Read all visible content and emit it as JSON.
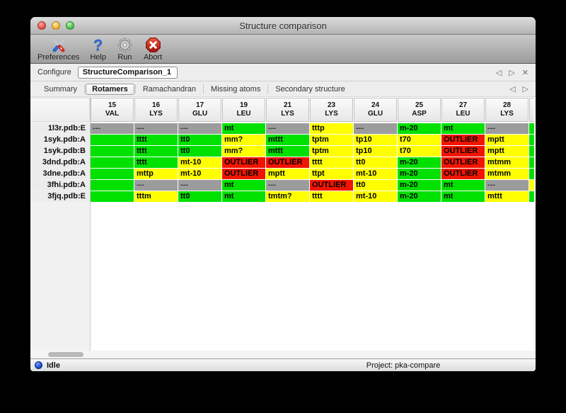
{
  "window": {
    "title": "Structure comparison"
  },
  "toolbar": {
    "items": [
      {
        "label": "Preferences",
        "icon": "crossed-tools-icon"
      },
      {
        "label": "Help",
        "icon": "question-mark-icon"
      },
      {
        "label": "Run",
        "icon": "gear-icon"
      },
      {
        "label": "Abort",
        "icon": "stop-x-icon"
      }
    ]
  },
  "configure": {
    "label": "Configure",
    "value": "StructureComparison_1"
  },
  "tabs": {
    "items": [
      {
        "label": "Summary",
        "selected": false
      },
      {
        "label": "Rotamers",
        "selected": true
      },
      {
        "label": "Ramachandran",
        "selected": false
      },
      {
        "label": "Missing atoms",
        "selected": false
      },
      {
        "label": "Secondary structure",
        "selected": false
      }
    ]
  },
  "icons": {
    "nav_prev": "◁",
    "nav_next": "▷",
    "close": "✕",
    "help": "?"
  },
  "colors": {
    "green": "#00e100",
    "yellow": "#ffff00",
    "red": "#f11500",
    "gray": "#9c9c9c"
  },
  "table": {
    "columns": [
      {
        "number": "15",
        "residue": "VAL"
      },
      {
        "number": "16",
        "residue": "LYS"
      },
      {
        "number": "17",
        "residue": "GLU"
      },
      {
        "number": "19",
        "residue": "LEU"
      },
      {
        "number": "21",
        "residue": "LYS"
      },
      {
        "number": "23",
        "residue": "LYS"
      },
      {
        "number": "24",
        "residue": "GLU"
      },
      {
        "number": "25",
        "residue": "ASP"
      },
      {
        "number": "27",
        "residue": "LEU"
      },
      {
        "number": "28",
        "residue": "LYS"
      }
    ],
    "rows": [
      {
        "label": "1l3r.pdb:E",
        "overflow": "green",
        "cells": [
          {
            "t": "---",
            "c": "gray"
          },
          {
            "t": "---",
            "c": "gray"
          },
          {
            "t": "---",
            "c": "gray"
          },
          {
            "t": "mt",
            "c": "green"
          },
          {
            "t": "---",
            "c": "gray"
          },
          {
            "t": "tttp",
            "c": "yellow"
          },
          {
            "t": "---",
            "c": "gray"
          },
          {
            "t": "m-20",
            "c": "green"
          },
          {
            "t": "mt",
            "c": "green"
          },
          {
            "t": "---",
            "c": "gray"
          }
        ]
      },
      {
        "label": "1syk.pdb:A",
        "overflow": "green",
        "cells": [
          {
            "t": "",
            "c": "green"
          },
          {
            "t": "tttt",
            "c": "green"
          },
          {
            "t": "tt0",
            "c": "green"
          },
          {
            "t": "mm?",
            "c": "yellow"
          },
          {
            "t": "mttt",
            "c": "green"
          },
          {
            "t": "tptm",
            "c": "yellow"
          },
          {
            "t": "tp10",
            "c": "yellow"
          },
          {
            "t": "t70",
            "c": "yellow"
          },
          {
            "t": "OUTLIER",
            "c": "red"
          },
          {
            "t": "mptt",
            "c": "yellow"
          }
        ]
      },
      {
        "label": "1syk.pdb:B",
        "overflow": "green",
        "cells": [
          {
            "t": "",
            "c": "green"
          },
          {
            "t": "tttt",
            "c": "green"
          },
          {
            "t": "tt0",
            "c": "green"
          },
          {
            "t": "mm?",
            "c": "yellow"
          },
          {
            "t": "mttt",
            "c": "green"
          },
          {
            "t": "tptm",
            "c": "yellow"
          },
          {
            "t": "tp10",
            "c": "yellow"
          },
          {
            "t": "t70",
            "c": "yellow"
          },
          {
            "t": "OUTLIER",
            "c": "red"
          },
          {
            "t": "mptt",
            "c": "yellow"
          }
        ]
      },
      {
        "label": "3dnd.pdb:A",
        "overflow": "green",
        "cells": [
          {
            "t": "",
            "c": "green"
          },
          {
            "t": "tttt",
            "c": "green"
          },
          {
            "t": "mt-10",
            "c": "yellow"
          },
          {
            "t": "OUTLIER",
            "c": "red"
          },
          {
            "t": "OUTLIER",
            "c": "red"
          },
          {
            "t": "tttt",
            "c": "yellow"
          },
          {
            "t": "tt0",
            "c": "yellow"
          },
          {
            "t": "m-20",
            "c": "green"
          },
          {
            "t": "OUTLIER",
            "c": "red"
          },
          {
            "t": "mtmm",
            "c": "yellow"
          }
        ]
      },
      {
        "label": "3dne.pdb:A",
        "overflow": "green",
        "cells": [
          {
            "t": "",
            "c": "green"
          },
          {
            "t": "mttp",
            "c": "yellow"
          },
          {
            "t": "mt-10",
            "c": "yellow"
          },
          {
            "t": "OUTLIER",
            "c": "red"
          },
          {
            "t": "mptt",
            "c": "yellow"
          },
          {
            "t": "ttpt",
            "c": "yellow"
          },
          {
            "t": "mt-10",
            "c": "yellow"
          },
          {
            "t": "m-20",
            "c": "green"
          },
          {
            "t": "OUTLIER",
            "c": "red"
          },
          {
            "t": "mtmm",
            "c": "yellow"
          }
        ]
      },
      {
        "label": "3fhi.pdb:A",
        "overflow": "yellow",
        "cells": [
          {
            "t": "",
            "c": "green"
          },
          {
            "t": "---",
            "c": "gray"
          },
          {
            "t": "---",
            "c": "gray"
          },
          {
            "t": "mt",
            "c": "green"
          },
          {
            "t": "---",
            "c": "gray"
          },
          {
            "t": "OUTLIER",
            "c": "red"
          },
          {
            "t": "tt0",
            "c": "yellow"
          },
          {
            "t": "m-20",
            "c": "green"
          },
          {
            "t": "mt",
            "c": "green"
          },
          {
            "t": "---",
            "c": "gray"
          }
        ]
      },
      {
        "label": "3fjq.pdb:E",
        "overflow": "green",
        "cells": [
          {
            "t": "",
            "c": "green"
          },
          {
            "t": "tttm",
            "c": "yellow"
          },
          {
            "t": "tt0",
            "c": "green"
          },
          {
            "t": "mt",
            "c": "green"
          },
          {
            "t": "tmtm?",
            "c": "yellow"
          },
          {
            "t": "tttt",
            "c": "yellow"
          },
          {
            "t": "mt-10",
            "c": "yellow"
          },
          {
            "t": "m-20",
            "c": "green"
          },
          {
            "t": "mt",
            "c": "green"
          },
          {
            "t": "mttt",
            "c": "yellow"
          }
        ]
      }
    ]
  },
  "statusbar": {
    "status": "Idle",
    "project": "Project: pka-compare"
  }
}
